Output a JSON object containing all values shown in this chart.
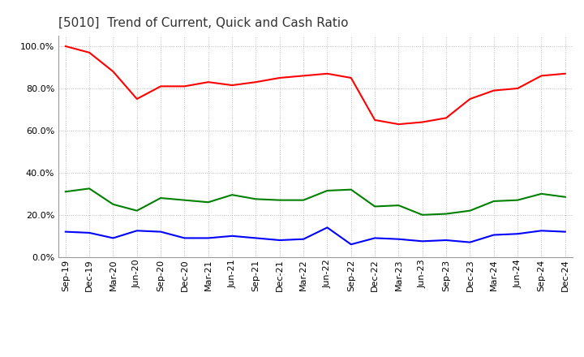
{
  "title": "[5010]  Trend of Current, Quick and Cash Ratio",
  "labels": [
    "Sep-19",
    "Dec-19",
    "Mar-20",
    "Jun-20",
    "Sep-20",
    "Dec-20",
    "Mar-21",
    "Jun-21",
    "Sep-21",
    "Dec-21",
    "Mar-22",
    "Jun-22",
    "Sep-22",
    "Dec-22",
    "Mar-23",
    "Jun-23",
    "Sep-23",
    "Dec-23",
    "Mar-24",
    "Jun-24",
    "Sep-24",
    "Dec-24"
  ],
  "current_ratio": [
    100.0,
    97.0,
    88.0,
    75.0,
    81.0,
    81.0,
    83.0,
    81.5,
    83.0,
    85.0,
    86.0,
    87.0,
    85.0,
    65.0,
    63.0,
    64.0,
    66.0,
    75.0,
    79.0,
    80.0,
    86.0,
    87.0
  ],
  "quick_ratio": [
    31.0,
    32.5,
    25.0,
    22.0,
    28.0,
    27.0,
    26.0,
    29.5,
    27.5,
    27.0,
    27.0,
    31.5,
    32.0,
    24.0,
    24.5,
    20.0,
    20.5,
    22.0,
    26.5,
    27.0,
    30.0,
    28.5
  ],
  "cash_ratio": [
    12.0,
    11.5,
    9.0,
    12.5,
    12.0,
    9.0,
    9.0,
    10.0,
    9.0,
    8.0,
    8.5,
    14.0,
    6.0,
    9.0,
    8.5,
    7.5,
    8.0,
    7.0,
    10.5,
    11.0,
    12.5,
    12.0
  ],
  "current_color": "#FF0000",
  "quick_color": "#008000",
  "cash_color": "#0000FF",
  "ylim": [
    0,
    105
  ],
  "yticks": [
    0,
    20,
    40,
    60,
    80,
    100
  ],
  "background_color": "#FFFFFF",
  "grid_color": "#BBBBBB"
}
